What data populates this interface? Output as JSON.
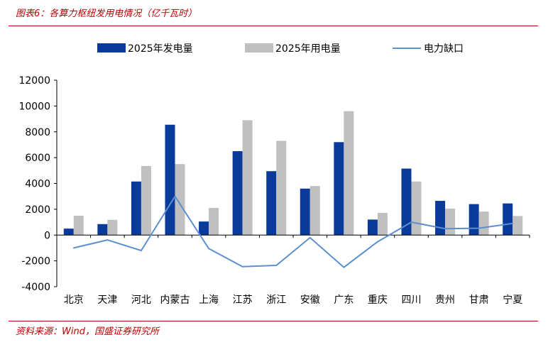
{
  "figure": {
    "title": "图表6：各算力枢纽发用电情况（亿千瓦时）",
    "source": "资料来源：Wind，国盛证券研究所"
  },
  "colors": {
    "accent": "#c00000",
    "generation": "#0a3a9a",
    "consumption": "#c0c0c0",
    "gap": "#5b8fd0"
  },
  "chart_data": {
    "type": "bar",
    "categories": [
      "北京",
      "天津",
      "河北",
      "内蒙古",
      "上海",
      "江苏",
      "浙江",
      "安徽",
      "广东",
      "重庆",
      "四川",
      "贵州",
      "甘肃",
      "宁夏"
    ],
    "series": [
      {
        "name": "2025年发电量",
        "type": "bar",
        "values": [
          500,
          850,
          4150,
          8550,
          1050,
          6500,
          4950,
          3600,
          7200,
          1200,
          5150,
          2650,
          2400,
          2450
        ]
      },
      {
        "name": "2025年用电量",
        "type": "bar",
        "values": [
          1500,
          1180,
          5350,
          5500,
          2100,
          8900,
          7300,
          3800,
          9600,
          1720,
          4150,
          2050,
          1820,
          1480
        ]
      },
      {
        "name": "电力缺口",
        "type": "line",
        "values": [
          -1000,
          -380,
          -1200,
          3000,
          -1050,
          -2450,
          -2350,
          -200,
          -2500,
          -520,
          1000,
          500,
          530,
          900
        ]
      }
    ],
    "y_ticks": [
      12000,
      10000,
      8000,
      6000,
      4000,
      2000,
      0,
      -2000,
      -4000
    ],
    "ylim": [
      -4000,
      12000
    ],
    "grid": false,
    "legend": "top"
  }
}
